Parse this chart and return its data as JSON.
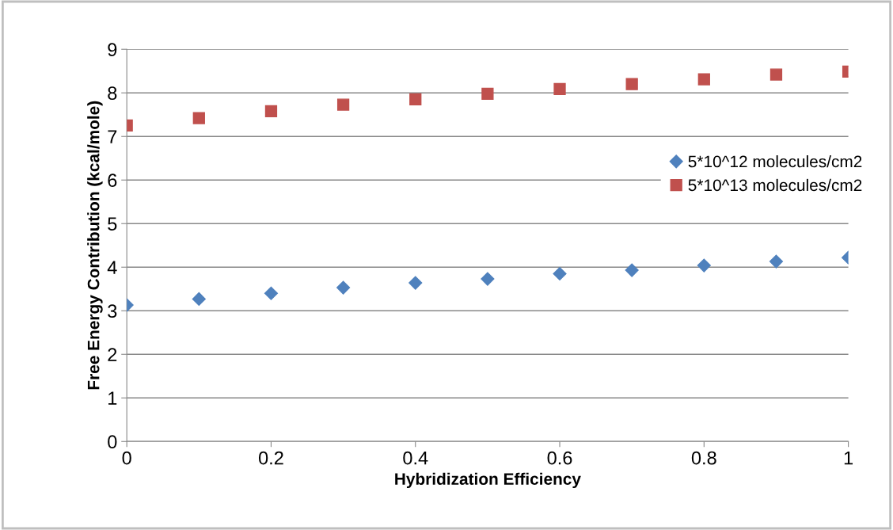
{
  "chart_data": {
    "type": "scatter",
    "xlabel": "Hybridization Efficiency",
    "ylabel": "Free Energy Contribution (kcal/mole)",
    "x": [
      0,
      0.1,
      0.2,
      0.3,
      0.4,
      0.5,
      0.6,
      0.7,
      0.8,
      0.9,
      1
    ],
    "series": [
      {
        "name": "5*10^12 molecules/cm2",
        "color": "#4f81bd",
        "marker": "diamond",
        "values": [
          3.13,
          3.27,
          3.4,
          3.53,
          3.64,
          3.73,
          3.85,
          3.93,
          4.04,
          4.13,
          4.22
        ]
      },
      {
        "name": "5*10^13 molecules/cm2",
        "color": "#c0504d",
        "marker": "square",
        "values": [
          7.25,
          7.42,
          7.58,
          7.73,
          7.85,
          7.98,
          8.09,
          8.2,
          8.31,
          8.42,
          8.49
        ]
      }
    ],
    "xlim": [
      0,
      1
    ],
    "xticks": [
      0,
      0.2,
      0.4,
      0.6,
      0.8,
      1
    ],
    "ylim": [
      0,
      9
    ],
    "yticks": [
      0,
      1,
      2,
      3,
      4,
      5,
      6,
      7,
      8,
      9
    ],
    "grid": "y",
    "legend": "right"
  }
}
